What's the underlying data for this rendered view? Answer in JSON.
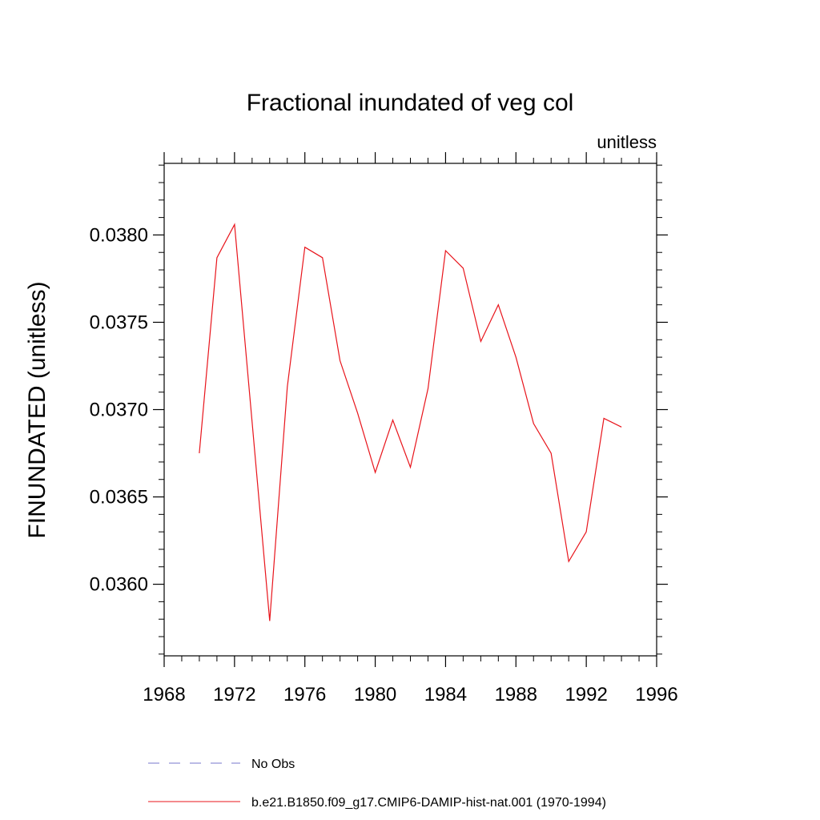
{
  "chart_data": {
    "type": "line",
    "title": "Fractional inundated of veg col",
    "subtitle": "unitless",
    "xlabel": "",
    "ylabel": "FINUNDATED  (unitless)",
    "xlim": [
      1968,
      1996
    ],
    "ylim": [
      0.03559,
      0.03841
    ],
    "x_ticks": [
      1968,
      1972,
      1976,
      1980,
      1984,
      1988,
      1992,
      1996
    ],
    "x_tick_labels": [
      "1968",
      "1972",
      "1976",
      "1980",
      "1984",
      "1988",
      "1992",
      "1996"
    ],
    "y_ticks": [
      0.036,
      0.0365,
      0.037,
      0.0375,
      0.038
    ],
    "y_tick_labels": [
      "0.0360",
      "0.0365",
      "0.0370",
      "0.0375",
      "0.0380"
    ],
    "grid": false,
    "legend_position": "bottom",
    "series": [
      {
        "name": "No Obs",
        "color": "#7777cc",
        "dash": "dashed",
        "x": [],
        "y": []
      },
      {
        "name": "b.e21.B1850.f09_g17.CMIP6-DAMIP-hist-nat.001 (1970-1994)",
        "color": "#e8141b",
        "dash": "solid",
        "x": [
          1970,
          1971,
          1972,
          1973,
          1974,
          1975,
          1976,
          1977,
          1978,
          1979,
          1980,
          1981,
          1982,
          1983,
          1984,
          1985,
          1986,
          1987,
          1988,
          1989,
          1990,
          1991,
          1992,
          1993,
          1994
        ],
        "y": [
          0.03675,
          0.03787,
          0.03806,
          0.03693,
          0.03579,
          0.03713,
          0.03793,
          0.03787,
          0.03728,
          0.03698,
          0.03664,
          0.03694,
          0.03667,
          0.03712,
          0.03791,
          0.03781,
          0.03739,
          0.0376,
          0.0373,
          0.03692,
          0.03675,
          0.03613,
          0.0363,
          0.03695,
          0.0369
        ]
      }
    ]
  }
}
